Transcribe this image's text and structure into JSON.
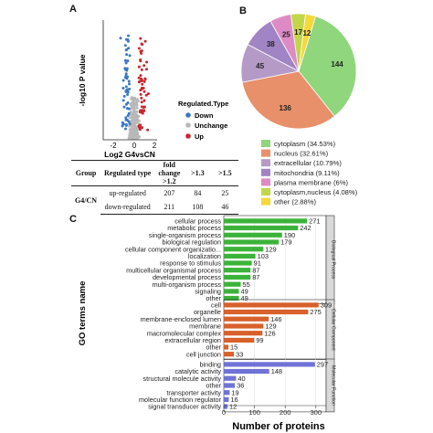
{
  "panels": {
    "a": "A",
    "b": "B",
    "c": "C"
  },
  "volcano": {
    "ylabel": "-log10 P value",
    "xlabel": "Log2 G4vsCN",
    "x_ticks": [
      "-2",
      "0",
      "2"
    ],
    "legend_title": "Regulated.Type",
    "legend": [
      {
        "label": "Down",
        "color": "#3a78c3"
      },
      {
        "label": "Unchange",
        "color": "#b8b8b8"
      },
      {
        "label": "Up",
        "color": "#c8272d"
      }
    ]
  },
  "table": {
    "headers": [
      "Group",
      "Regulated type",
      "fold change >1.2",
      ">1.3",
      ">1.5"
    ],
    "group": "G4/CN",
    "rows": [
      {
        "type": "up-regulated",
        "v12": "207",
        "v13": "84",
        "v15": "25"
      },
      {
        "type": "down-regulated",
        "v12": "211",
        "v13": "108",
        "v15": "46"
      }
    ]
  },
  "chart_data": [
    {
      "type": "pie",
      "labels": [
        "cytoplasm (34.53%)",
        "nucleus (32.61%)",
        "extracellular (10.79%)",
        "mitochondria (9.11%)",
        "plasma membrane (6%)",
        "cytoplasm,nucleus (4.08%)",
        "other (2.88%)"
      ],
      "values": [
        144,
        136,
        45,
        38,
        25,
        17,
        12
      ],
      "colors": [
        "#8fd67c",
        "#e7906a",
        "#b59ac7",
        "#a084c3",
        "#de8bc5",
        "#c2d64a",
        "#f5d83a"
      ],
      "legend_position": "bottom"
    },
    {
      "type": "bar",
      "orientation": "horizontal",
      "ylabel": "GO terms name",
      "xlabel": "Number of proteins",
      "xlim": [
        0,
        330
      ],
      "x_ticks": [
        "0",
        "100",
        "200",
        "300"
      ],
      "groups": [
        {
          "name": "Biological Process",
          "color": "#3bb33a",
          "categories": [
            "cellular process",
            "metabolic process",
            "single-organism process",
            "biological regulation",
            "cellular component organizatio...",
            "localization",
            "response to stimulus",
            "multicellular organismal process",
            "developmental process",
            "multi-organism process",
            "signaling",
            "other"
          ],
          "values": [
            271,
            242,
            190,
            179,
            129,
            103,
            91,
            87,
            87,
            55,
            49,
            49
          ]
        },
        {
          "name": "Cellular Component",
          "color": "#d8602a",
          "categories": [
            "cell",
            "organelle",
            "membrane-enclosed lumen",
            "membrane",
            "macromolecular complex",
            "extracellular region",
            "other",
            "cell junction"
          ],
          "values": [
            309,
            275,
            146,
            129,
            126,
            99,
            15,
            33
          ]
        },
        {
          "name": "Molecular Function",
          "color": "#6f73d6",
          "categories": [
            "binding",
            "catalytic activity",
            "structural molecule activity",
            "other",
            "transporter activity",
            "molecular function regulator",
            "signal transducer activity"
          ],
          "values": [
            297,
            148,
            40,
            36,
            19,
            16,
            12
          ]
        }
      ]
    }
  ]
}
